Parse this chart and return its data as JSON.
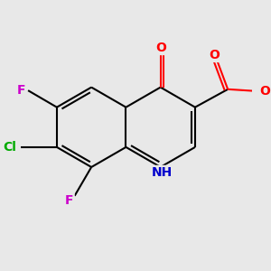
{
  "background_color": "#e8e8e8",
  "bond_color": "#000000",
  "atom_colors": {
    "O": "#ff0000",
    "N": "#0000cc",
    "F": "#cc00cc",
    "Cl": "#00aa00",
    "C": "#000000",
    "H": "#000000"
  },
  "figsize": [
    3.0,
    3.0
  ],
  "dpi": 100,
  "xlim": [
    -2.2,
    2.2
  ],
  "ylim": [
    -2.2,
    2.2
  ]
}
